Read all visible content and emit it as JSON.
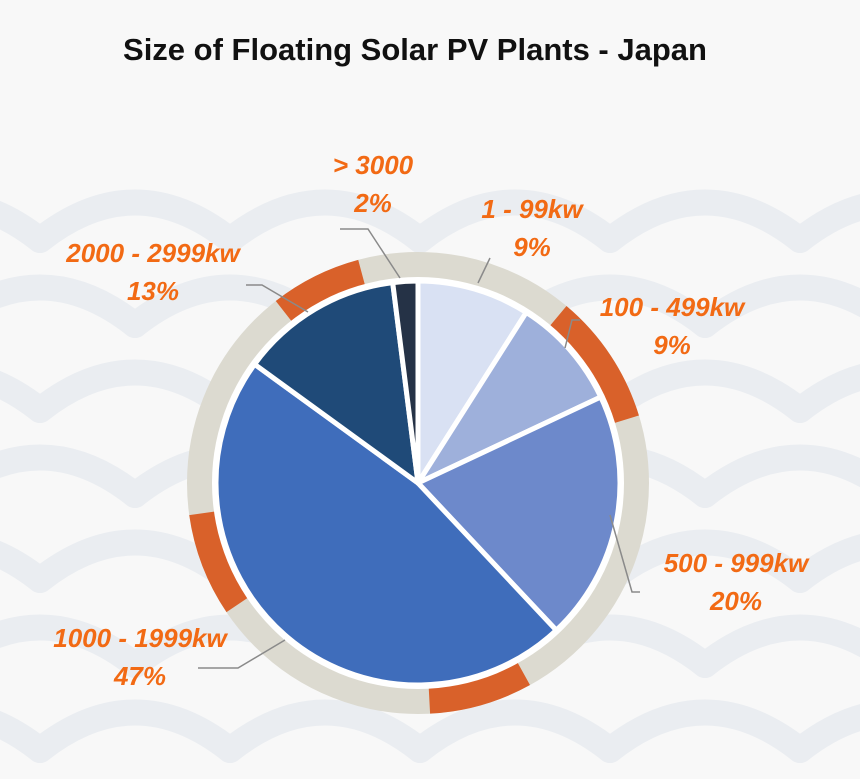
{
  "chart_data": {
    "type": "pie",
    "title": "Size of Floating Solar PV Plants - Japan",
    "slices": [
      {
        "category": "1 - 99kw",
        "percent_label": "9%",
        "value": 9,
        "color": "#d9e1f3"
      },
      {
        "category": "100 - 499kw",
        "percent_label": "9%",
        "value": 9,
        "color": "#9eb0db"
      },
      {
        "category": "500 - 999kw",
        "percent_label": "20%",
        "value": 20,
        "color": "#6d89cb"
      },
      {
        "category": "1000 - 1999kw",
        "percent_label": "47%",
        "value": 47,
        "color": "#3f6dbb"
      },
      {
        "category": "2000 - 2999kw",
        "percent_label": "13%",
        "value": 13,
        "color": "#1f4a78"
      },
      {
        "category": "> 3000",
        "percent_label": "2%",
        "value": 2,
        "color": "#253246"
      }
    ]
  },
  "colors": {
    "label_text": "#f26a14",
    "ring": "#dcdad0",
    "ring_accent": "#d9612a",
    "background": "#f8f8f8",
    "wave": "#eaedf1"
  }
}
